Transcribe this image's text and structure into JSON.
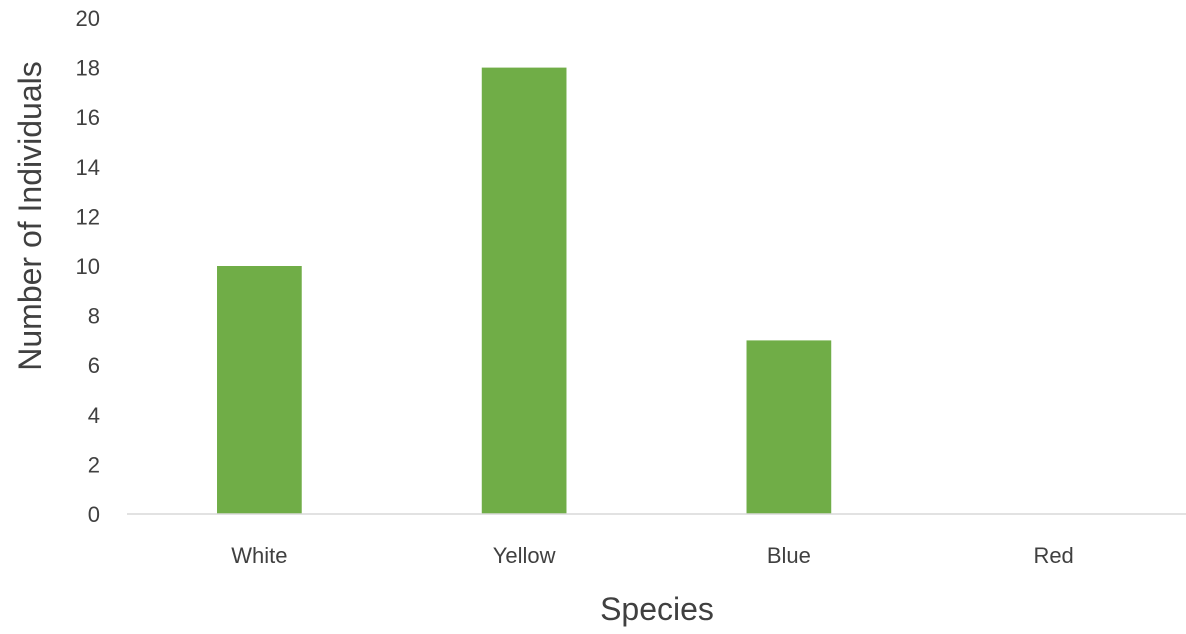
{
  "chart_data": {
    "type": "bar",
    "title": "",
    "xlabel": "Species",
    "ylabel": "Number of Individuals",
    "categories": [
      "White",
      "Yellow",
      "Blue",
      "Red"
    ],
    "values": [
      10,
      18,
      7,
      0
    ],
    "ylim": [
      0,
      20
    ],
    "yticks": [
      "0",
      "2",
      "4",
      "6",
      "8",
      "10",
      "12",
      "14",
      "16",
      "18",
      "20"
    ],
    "grid": false,
    "legend": "none",
    "colors": {
      "bar": "#70ad47",
      "axis": "#d9d9d9",
      "text": "#404040"
    }
  }
}
